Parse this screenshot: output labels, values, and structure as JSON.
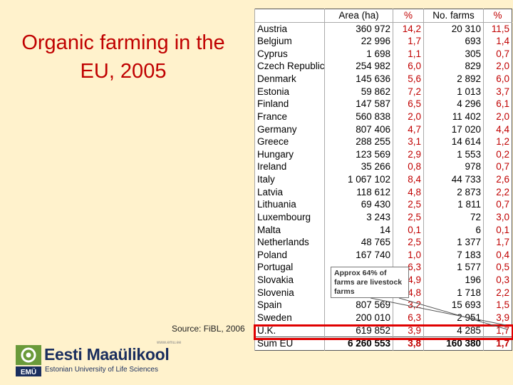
{
  "slide": {
    "title": "Organic farming in the EU, 2005",
    "source": "Source: FiBL, 2006"
  },
  "table": {
    "headers": [
      "",
      "Area (ha)",
      "%",
      "No. farms",
      "%"
    ],
    "rows": [
      [
        "Austria",
        "360 972",
        "14,2",
        "20 310",
        "11,5"
      ],
      [
        "Belgium",
        "22 996",
        "1,7",
        "693",
        "1,4"
      ],
      [
        "Cyprus",
        "1 698",
        "1,1",
        "305",
        "0,7"
      ],
      [
        "Czech Republic",
        "254 982",
        "6,0",
        "829",
        "2,0"
      ],
      [
        "Denmark",
        "145 636",
        "5,6",
        "2 892",
        "6,0"
      ],
      [
        "Estonia",
        "59 862",
        "7,2",
        "1 013",
        "3,7"
      ],
      [
        "Finland",
        "147 587",
        "6,5",
        "4 296",
        "6,1"
      ],
      [
        "France",
        "560 838",
        "2,0",
        "11 402",
        "2,0"
      ],
      [
        "Germany",
        "807 406",
        "4,7",
        "17 020",
        "4,4"
      ],
      [
        "Greece",
        "288 255",
        "3,1",
        "14 614",
        "1,2"
      ],
      [
        "Hungary",
        "123 569",
        "2,9",
        "1 553",
        "0,2"
      ],
      [
        "Ireland",
        "35 266",
        "0,8",
        "978",
        "0,7"
      ],
      [
        "Italy",
        "1 067 102",
        "8,4",
        "44 733",
        "2,6"
      ],
      [
        "Latvia",
        "118 612",
        "4,8",
        "2 873",
        "2,2"
      ],
      [
        "Lithuania",
        "69 430",
        "2,5",
        "1 811",
        "0,7"
      ],
      [
        "Luxembourg",
        "3 243",
        "2,5",
        "72",
        "3,0"
      ],
      [
        "Malta",
        "14",
        "0,1",
        "6",
        "0,1"
      ],
      [
        "Netherlands",
        "48 765",
        "2,5",
        "1 377",
        "1,7"
      ],
      [
        "Poland",
        "167 740",
        "1,0",
        "7 183",
        "0,4"
      ],
      [
        "Portugal",
        "",
        "6,3",
        "1 577",
        "0,5"
      ],
      [
        "Slovakia",
        "",
        "4,9",
        "196",
        "0,3"
      ],
      [
        "Slovenia",
        "",
        "4,8",
        "1 718",
        "2,2"
      ],
      [
        "Spain",
        "807 569",
        "3,2",
        "15 693",
        "1,5"
      ],
      [
        "Sweden",
        "200 010",
        "6,3",
        "2 951",
        "3,9"
      ],
      [
        "U.K.",
        "619 852",
        "3,9",
        "4 285",
        "1,7"
      ]
    ],
    "total": [
      "Sum EU",
      "6 260 553",
      "3,8",
      "160 380",
      "1,7"
    ]
  },
  "callout": "Approx 64% of farms are livestock farms",
  "logo": {
    "name": "Eesti Maaülikool",
    "subtitle": "Estonian University of Life Sciences",
    "url": "www.emu.ee",
    "mark": "EMÜ"
  },
  "colors": {
    "background": "#fff2cc",
    "title": "#c00000",
    "percent": "#c00000",
    "highlight": "#e00000",
    "logo_blue": "#1a2e5e",
    "logo_green": "#6a9a3a"
  }
}
